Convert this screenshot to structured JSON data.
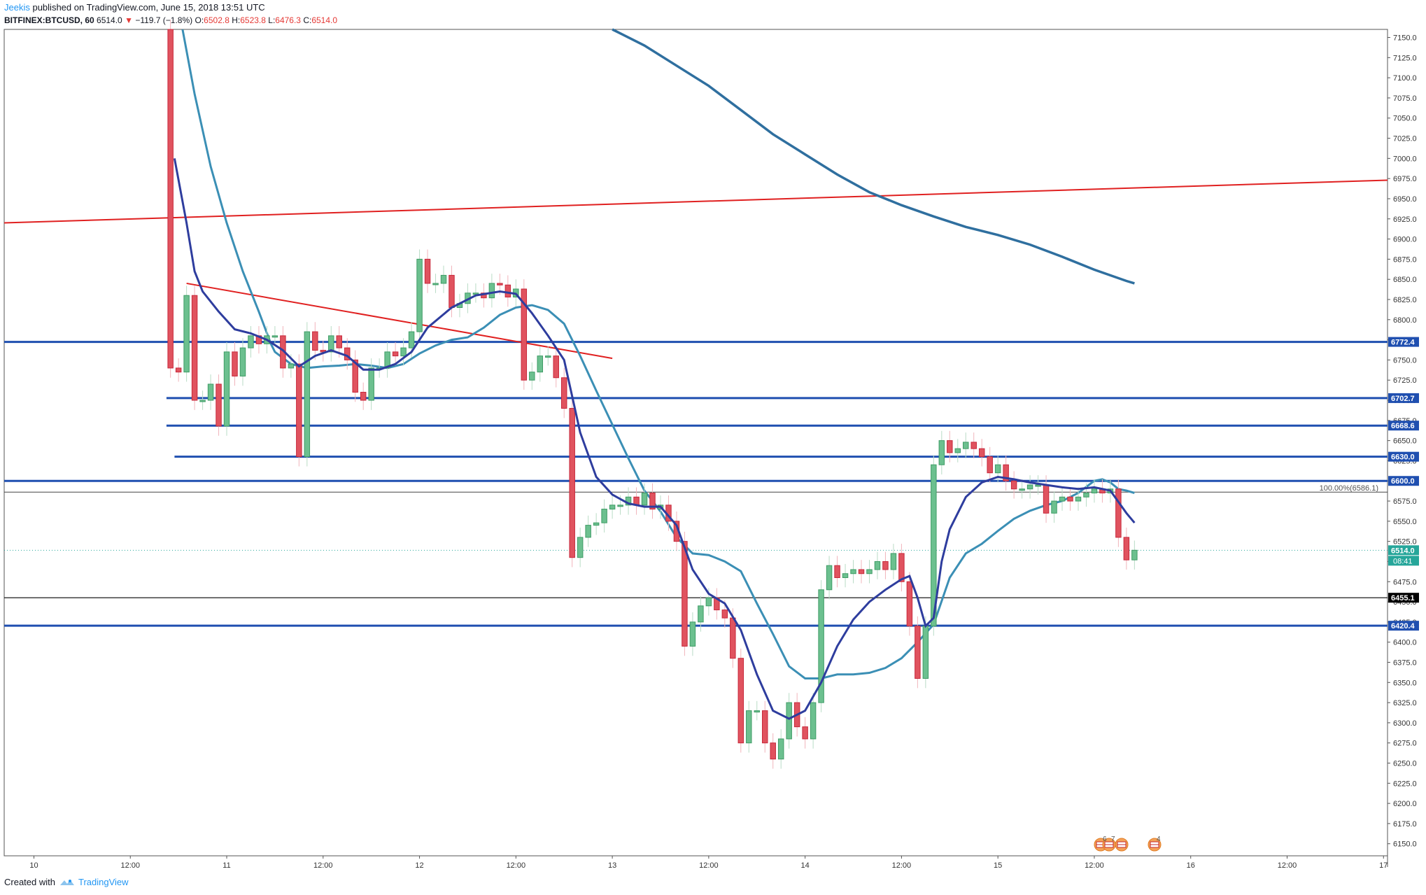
{
  "header": {
    "author": "Jeekis",
    "published_text": " published on TradingView.com, June 15, 2018 13:51 UTC",
    "symbol": "BITFINEX:BTCUSD, 60",
    "last": "6514.0",
    "change": "−119.7 (−1.8%)",
    "o_label": "O:",
    "o_value": "6502.8",
    "h_label": "H:",
    "h_value": "6523.8",
    "l_label": "L:",
    "l_value": "6476.3",
    "c_label": "C:",
    "c_value": "6514.0"
  },
  "footer": {
    "created_with": "Created with",
    "brand": "TradingView"
  },
  "colors": {
    "up": "#3f9c66",
    "up_fill": "#6cc08f",
    "down": "#c7283b",
    "down_fill": "#e0535f",
    "level": "#1f4fb0",
    "ma_fast": "#2e3d9e",
    "ma_mid": "#3b8fb5",
    "ma_slow": "#2f6f9f",
    "trend": "#e02020",
    "fib": "#444444",
    "close_line": "#26a69a"
  },
  "chart_data": {
    "type": "candlestick",
    "timeframe": "60",
    "y_ticks": [
      6150,
      6175,
      6200,
      6225,
      6250,
      6275,
      6300,
      6325,
      6350,
      6375,
      6400,
      6425,
      6450,
      6475,
      6500,
      6525,
      6550,
      6575,
      6600,
      6625,
      6650,
      6675,
      6700,
      6725,
      6750,
      6775,
      6800,
      6825,
      6850,
      6875,
      6900,
      6925,
      6950,
      6975,
      7000,
      7025,
      7050,
      7075,
      7100,
      7125,
      7150
    ],
    "y_tick_labels": [
      "6150.0",
      "6175.0",
      "6200.0",
      "6225.0",
      "6250.0",
      "6275.0",
      "6300.0",
      "6325.0",
      "6350.0",
      "6375.0",
      "6400.0",
      "6425.0",
      "6450.0",
      "6475.0",
      "6500.0",
      "6525.0",
      "6550.0",
      "6575.0",
      "6600.0",
      "6625.0",
      "6650.0",
      "6675.0",
      "6700.0",
      "6725.0",
      "6750.0",
      "6775.0",
      "6800.0",
      "6825.0",
      "6850.0",
      "6875.0",
      "6900.0",
      "6925.0",
      "6950.0",
      "6975.0",
      "7000.0",
      "7025.0",
      "7050.0",
      "7075.0",
      "7100.0",
      "7125.0",
      "7150.0"
    ],
    "ylim": [
      6135,
      7160
    ],
    "x_labels": [
      "10",
      "12:00",
      "11",
      "12:00",
      "12",
      "12:00",
      "13",
      "12:00",
      "14",
      "12:00",
      "15",
      "12:00",
      "16",
      "12:00",
      "17"
    ],
    "x_label_hours": [
      0,
      12,
      24,
      36,
      48,
      60,
      72,
      84,
      96,
      108,
      120,
      132,
      144,
      156,
      168
    ],
    "x_range_hours": [
      -3.7,
      168.5
    ],
    "levels": [
      {
        "value": 6772.4,
        "label": "6772.4",
        "from_hour": -3.7,
        "width": 3
      },
      {
        "value": 6702.7,
        "label": "6702.7",
        "from_hour": 16.5,
        "width": 3
      },
      {
        "value": 6668.6,
        "label": "6668.6",
        "from_hour": 16.5,
        "width": 3
      },
      {
        "value": 6630.0,
        "label": "6630.0",
        "from_hour": 17.5,
        "width": 3
      },
      {
        "value": 6600.0,
        "label": "6600.0",
        "from_hour": -3.7,
        "width": 3
      },
      {
        "value": 6420.4,
        "label": "6420.4",
        "from_hour": -3.7,
        "width": 3
      }
    ],
    "fib_line": {
      "value": 6586.1,
      "label": "100.00%(6586.1)"
    },
    "black_line": {
      "value": 6455.1,
      "label": "6455.1"
    },
    "last_price": {
      "value": 6514.0,
      "label": "6514.0",
      "countdown": "08:41"
    },
    "trendlines": [
      {
        "x1": -3.7,
        "y1": 6920,
        "x2": 168.5,
        "y2": 6973
      },
      {
        "x1": 19,
        "y1": 6845,
        "x2": 72,
        "y2": 6752
      }
    ],
    "events": {
      "label1": "6",
      "label2": "7",
      "label3": "4"
    },
    "candles": [
      [
        17.0,
        7160,
        6740
      ],
      [
        18.0,
        6740,
        6735
      ],
      [
        19.0,
        6735,
        6830
      ],
      [
        20.0,
        6830,
        6700
      ],
      [
        21.0,
        6700,
        6700
      ],
      [
        22.0,
        6700,
        6720
      ],
      [
        23.0,
        6720,
        6668
      ],
      [
        24.0,
        6668,
        6760
      ],
      [
        25.0,
        6760,
        6730
      ],
      [
        26.0,
        6730,
        6765
      ],
      [
        27.0,
        6765,
        6780
      ],
      [
        28.0,
        6780,
        6770
      ],
      [
        29.0,
        6770,
        6780
      ],
      [
        30.0,
        6780,
        6780
      ],
      [
        31.0,
        6780,
        6740
      ],
      [
        32.0,
        6740,
        6745
      ],
      [
        33.0,
        6745,
        6630
      ],
      [
        34.0,
        6630,
        6785
      ],
      [
        35.0,
        6785,
        6762
      ],
      [
        36.0,
        6762,
        6760
      ],
      [
        37.0,
        6760,
        6780
      ],
      [
        38.0,
        6780,
        6765
      ],
      [
        39.0,
        6765,
        6750
      ],
      [
        40.0,
        6750,
        6710
      ],
      [
        41.0,
        6710,
        6700
      ],
      [
        42.0,
        6700,
        6740
      ],
      [
        43.0,
        6740,
        6740
      ],
      [
        44.0,
        6740,
        6760
      ],
      [
        45.0,
        6760,
        6755
      ],
      [
        46.0,
        6755,
        6765
      ],
      [
        47.0,
        6765,
        6785
      ],
      [
        48.0,
        6785,
        6875
      ],
      [
        49.0,
        6875,
        6845
      ],
      [
        50.0,
        6845,
        6845
      ],
      [
        51.0,
        6845,
        6855
      ],
      [
        52.0,
        6855,
        6815
      ],
      [
        53.0,
        6815,
        6820
      ],
      [
        54.0,
        6820,
        6833
      ],
      [
        55.0,
        6833,
        6833
      ],
      [
        56.0,
        6833,
        6827
      ],
      [
        57.0,
        6827,
        6845
      ],
      [
        58.0,
        6845,
        6843
      ],
      [
        59.0,
        6843,
        6828
      ],
      [
        60.0,
        6828,
        6838
      ],
      [
        61.0,
        6838,
        6725
      ],
      [
        62.0,
        6725,
        6735
      ],
      [
        63.0,
        6735,
        6755
      ],
      [
        64.0,
        6755,
        6755
      ],
      [
        65.0,
        6755,
        6728
      ],
      [
        66.0,
        6728,
        6690
      ],
      [
        67.0,
        6690,
        6505
      ],
      [
        68.0,
        6505,
        6530
      ],
      [
        69.0,
        6530,
        6545
      ],
      [
        70.0,
        6545,
        6548
      ],
      [
        71.0,
        6548,
        6565
      ],
      [
        72.0,
        6565,
        6570
      ],
      [
        73.0,
        6570,
        6570
      ],
      [
        74.0,
        6570,
        6580
      ],
      [
        75.0,
        6580,
        6570
      ],
      [
        76.0,
        6570,
        6585
      ],
      [
        77.0,
        6585,
        6565
      ],
      [
        78.0,
        6565,
        6570
      ],
      [
        79.0,
        6570,
        6550
      ],
      [
        80.0,
        6550,
        6525
      ],
      [
        81.0,
        6525,
        6395
      ],
      [
        82.0,
        6395,
        6425
      ],
      [
        83.0,
        6425,
        6445
      ],
      [
        84.0,
        6445,
        6455
      ],
      [
        85.0,
        6455,
        6440
      ],
      [
        86.0,
        6440,
        6430
      ],
      [
        87.0,
        6430,
        6380
      ],
      [
        88.0,
        6380,
        6275
      ],
      [
        89.0,
        6275,
        6315
      ],
      [
        90.0,
        6315,
        6315
      ],
      [
        91.0,
        6315,
        6275
      ],
      [
        92.0,
        6275,
        6255
      ],
      [
        93.0,
        6255,
        6280
      ],
      [
        94.0,
        6280,
        6325
      ],
      [
        95.0,
        6325,
        6295
      ],
      [
        96.0,
        6295,
        6280
      ],
      [
        97.0,
        6280,
        6325
      ],
      [
        98.0,
        6325,
        6465
      ],
      [
        99.0,
        6465,
        6495
      ],
      [
        100.0,
        6495,
        6480
      ],
      [
        101.0,
        6480,
        6485
      ],
      [
        102.0,
        6485,
        6490
      ],
      [
        103.0,
        6490,
        6485
      ],
      [
        104.0,
        6485,
        6490
      ],
      [
        105.0,
        6490,
        6500
      ],
      [
        106.0,
        6500,
        6490
      ],
      [
        107.0,
        6490,
        6510
      ],
      [
        108.0,
        6510,
        6475
      ],
      [
        109.0,
        6475,
        6420
      ],
      [
        110.0,
        6420,
        6355
      ],
      [
        111.0,
        6355,
        6420
      ],
      [
        112.0,
        6420,
        6620
      ],
      [
        113.0,
        6620,
        6650
      ],
      [
        114.0,
        6650,
        6635
      ],
      [
        115.0,
        6635,
        6640
      ],
      [
        116.0,
        6640,
        6648
      ],
      [
        117.0,
        6648,
        6640
      ],
      [
        118.0,
        6640,
        6630
      ],
      [
        119.0,
        6630,
        6610
      ],
      [
        120.0,
        6610,
        6620
      ],
      [
        121.0,
        6620,
        6600
      ],
      [
        122.0,
        6600,
        6590
      ],
      [
        123.0,
        6590,
        6590
      ],
      [
        124.0,
        6590,
        6595
      ],
      [
        125.0,
        6595,
        6595
      ],
      [
        126.0,
        6595,
        6560
      ],
      [
        127.0,
        6560,
        6575
      ],
      [
        128.0,
        6575,
        6580
      ],
      [
        129.0,
        6580,
        6575
      ],
      [
        130.0,
        6575,
        6580
      ],
      [
        131.0,
        6580,
        6585
      ],
      [
        132.0,
        6585,
        6590
      ],
      [
        133.0,
        6590,
        6585
      ],
      [
        134.0,
        6585,
        6590
      ],
      [
        135.0,
        6590,
        6530
      ],
      [
        136.0,
        6530,
        6502
      ],
      [
        137.0,
        6502,
        6514
      ]
    ],
    "ma_fast": [
      [
        17.5,
        7000
      ],
      [
        19,
        6920
      ],
      [
        20,
        6860
      ],
      [
        21,
        6835
      ],
      [
        23,
        6810
      ],
      [
        25,
        6788
      ],
      [
        27,
        6783
      ],
      [
        29,
        6775
      ],
      [
        31,
        6762
      ],
      [
        33,
        6742
      ],
      [
        35,
        6755
      ],
      [
        37,
        6762
      ],
      [
        39,
        6755
      ],
      [
        41,
        6738
      ],
      [
        43,
        6738
      ],
      [
        45,
        6745
      ],
      [
        47,
        6760
      ],
      [
        49,
        6790
      ],
      [
        52,
        6815
      ],
      [
        55,
        6830
      ],
      [
        58,
        6835
      ],
      [
        60,
        6832
      ],
      [
        62,
        6808
      ],
      [
        64,
        6780
      ],
      [
        66,
        6750
      ],
      [
        68,
        6660
      ],
      [
        70,
        6605
      ],
      [
        72,
        6583
      ],
      [
        74,
        6572
      ],
      [
        76,
        6568
      ],
      [
        78,
        6568
      ],
      [
        80,
        6545
      ],
      [
        82,
        6490
      ],
      [
        84,
        6460
      ],
      [
        86,
        6448
      ],
      [
        88,
        6415
      ],
      [
        90,
        6360
      ],
      [
        92,
        6315
      ],
      [
        94,
        6305
      ],
      [
        96,
        6315
      ],
      [
        98,
        6350
      ],
      [
        100,
        6395
      ],
      [
        102,
        6428
      ],
      [
        104,
        6450
      ],
      [
        106,
        6465
      ],
      [
        108,
        6478
      ],
      [
        109,
        6482
      ],
      [
        110,
        6455
      ],
      [
        111,
        6420
      ],
      [
        112,
        6430
      ],
      [
        113,
        6500
      ],
      [
        114,
        6540
      ],
      [
        116,
        6580
      ],
      [
        118,
        6598
      ],
      [
        120,
        6605
      ],
      [
        122,
        6602
      ],
      [
        124,
        6598
      ],
      [
        126,
        6595
      ],
      [
        128,
        6592
      ],
      [
        130,
        6590
      ],
      [
        132,
        6592
      ],
      [
        134,
        6588
      ],
      [
        136,
        6560
      ],
      [
        137,
        6548
      ]
    ],
    "ma_mid": [
      [
        18.5,
        7160
      ],
      [
        20,
        7080
      ],
      [
        22,
        6990
      ],
      [
        24,
        6920
      ],
      [
        26,
        6860
      ],
      [
        28,
        6810
      ],
      [
        29.5,
        6770
      ],
      [
        30,
        6760
      ],
      [
        32,
        6745
      ],
      [
        34,
        6740
      ],
      [
        36,
        6742
      ],
      [
        38,
        6743
      ],
      [
        40,
        6745
      ],
      [
        42,
        6743
      ],
      [
        44,
        6740
      ],
      [
        46,
        6745
      ],
      [
        48,
        6758
      ],
      [
        50,
        6768
      ],
      [
        52,
        6775
      ],
      [
        54,
        6778
      ],
      [
        56,
        6790
      ],
      [
        58,
        6806
      ],
      [
        60,
        6815
      ],
      [
        62,
        6818
      ],
      [
        64,
        6812
      ],
      [
        66,
        6795
      ],
      [
        68,
        6755
      ],
      [
        70,
        6712
      ],
      [
        72,
        6670
      ],
      [
        74,
        6628
      ],
      [
        76,
        6588
      ],
      [
        78,
        6562
      ],
      [
        80,
        6530
      ],
      [
        82,
        6510
      ],
      [
        84,
        6508
      ],
      [
        86,
        6500
      ],
      [
        88,
        6488
      ],
      [
        90,
        6448
      ],
      [
        92,
        6410
      ],
      [
        94,
        6370
      ],
      [
        96,
        6355
      ],
      [
        98,
        6355
      ],
      [
        100,
        6360
      ],
      [
        102,
        6360
      ],
      [
        104,
        6362
      ],
      [
        106,
        6368
      ],
      [
        108,
        6380
      ],
      [
        110,
        6400
      ],
      [
        112,
        6422
      ],
      [
        114,
        6480
      ],
      [
        116,
        6510
      ],
      [
        118,
        6522
      ],
      [
        120,
        6538
      ],
      [
        122,
        6553
      ],
      [
        124,
        6563
      ],
      [
        126,
        6570
      ],
      [
        128,
        6575
      ],
      [
        130,
        6585
      ],
      [
        132,
        6600
      ],
      [
        133,
        6602
      ],
      [
        134,
        6598
      ],
      [
        135,
        6590
      ],
      [
        136,
        6588
      ],
      [
        137,
        6585
      ]
    ],
    "ma_slow": [
      [
        72,
        7160
      ],
      [
        76,
        7140
      ],
      [
        80,
        7115
      ],
      [
        84,
        7090
      ],
      [
        88,
        7060
      ],
      [
        92,
        7030
      ],
      [
        96,
        7005
      ],
      [
        100,
        6980
      ],
      [
        104,
        6958
      ],
      [
        108,
        6942
      ],
      [
        112,
        6928
      ],
      [
        116,
        6915
      ],
      [
        120,
        6905
      ],
      [
        124,
        6893
      ],
      [
        128,
        6878
      ],
      [
        132,
        6862
      ],
      [
        136,
        6848
      ],
      [
        137,
        6845
      ]
    ]
  }
}
